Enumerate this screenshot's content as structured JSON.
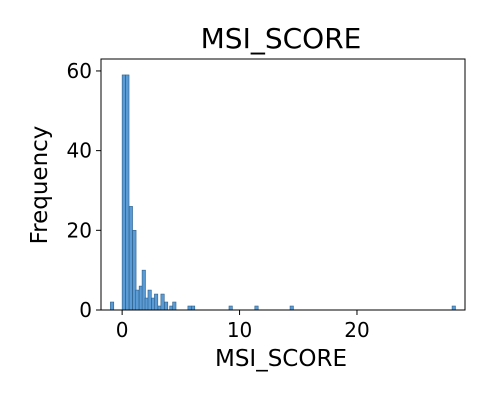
{
  "chart_data": {
    "type": "bar",
    "subtype": "histogram",
    "title": "MSI_SCORE",
    "xlabel": "MSI_SCORE",
    "ylabel": "Frequency",
    "xlim": [
      -1.8,
      29.2
    ],
    "ylim": [
      0,
      63
    ],
    "xticks": [
      0,
      10,
      20
    ],
    "yticks": [
      0,
      20,
      40,
      60
    ],
    "grid": false,
    "legend": "none",
    "bar_color": "#5b9bd5",
    "bar_edge_color": "#2e5f8a",
    "bin_width": 0.287,
    "bins": [
      {
        "x": -1.0,
        "count": 2
      },
      {
        "x": 0.0,
        "count": 59
      },
      {
        "x": 0.3,
        "count": 59
      },
      {
        "x": 0.6,
        "count": 26
      },
      {
        "x": 0.9,
        "count": 20
      },
      {
        "x": 1.15,
        "count": 5
      },
      {
        "x": 1.45,
        "count": 6
      },
      {
        "x": 1.7,
        "count": 10
      },
      {
        "x": 1.95,
        "count": 3
      },
      {
        "x": 2.2,
        "count": 5
      },
      {
        "x": 2.5,
        "count": 3
      },
      {
        "x": 2.75,
        "count": 4
      },
      {
        "x": 3.05,
        "count": 1
      },
      {
        "x": 3.3,
        "count": 4
      },
      {
        "x": 3.6,
        "count": 2
      },
      {
        "x": 4.05,
        "count": 1
      },
      {
        "x": 4.3,
        "count": 2
      },
      {
        "x": 5.6,
        "count": 1
      },
      {
        "x": 5.9,
        "count": 1
      },
      {
        "x": 9.1,
        "count": 1
      },
      {
        "x": 11.3,
        "count": 1
      },
      {
        "x": 14.3,
        "count": 1
      },
      {
        "x": 28.1,
        "count": 1
      }
    ]
  }
}
